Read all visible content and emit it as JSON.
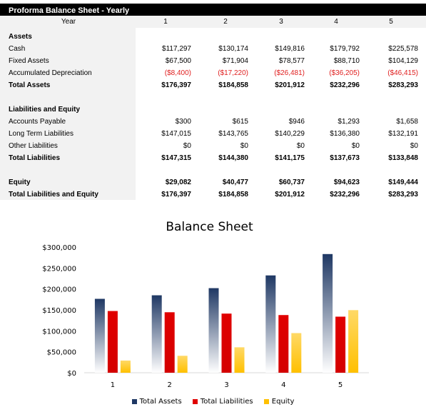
{
  "sheet": {
    "title": "Proforma Balance Sheet - Yearly",
    "year_label": "Year",
    "years": [
      "1",
      "2",
      "3",
      "4",
      "5"
    ],
    "rows": [
      {
        "label": "Assets",
        "bold": true,
        "values": []
      },
      {
        "label": "Cash",
        "values": [
          "$117,297",
          "$130,174",
          "$149,816",
          "$179,792",
          "$225,578"
        ]
      },
      {
        "label": "Fixed Assets",
        "values": [
          "$67,500",
          "$71,904",
          "$78,577",
          "$88,710",
          "$104,129"
        ]
      },
      {
        "label": "Accumulated Depreciation",
        "negative": true,
        "values": [
          "($8,400)",
          "($17,220)",
          "($26,481)",
          "($36,205)",
          "($46,415)"
        ]
      },
      {
        "label": "Total Assets",
        "bold": true,
        "values": [
          "$176,397",
          "$184,858",
          "$201,912",
          "$232,296",
          "$283,293"
        ]
      },
      {
        "label": "",
        "values": []
      },
      {
        "label": "Liabilities and Equity",
        "bold": true,
        "values": []
      },
      {
        "label": "Accounts Payable",
        "values": [
          "$300",
          "$615",
          "$946",
          "$1,293",
          "$1,658"
        ]
      },
      {
        "label": "Long Term Liabilities",
        "values": [
          "$147,015",
          "$143,765",
          "$140,229",
          "$136,380",
          "$132,191"
        ]
      },
      {
        "label": "Other Liabilities",
        "values": [
          "$0",
          "$0",
          "$0",
          "$0",
          "$0"
        ]
      },
      {
        "label": "Total Liabilities",
        "bold": true,
        "values": [
          "$147,315",
          "$144,380",
          "$141,175",
          "$137,673",
          "$133,848"
        ]
      },
      {
        "label": "",
        "values": []
      },
      {
        "label": "Equity",
        "bold": true,
        "values": [
          "$29,082",
          "$40,477",
          "$60,737",
          "$94,623",
          "$149,444"
        ]
      },
      {
        "label": "Total Liabilities and Equity",
        "bold": true,
        "values": [
          "$176,397",
          "$184,858",
          "$201,912",
          "$232,296",
          "$283,293"
        ]
      }
    ]
  },
  "chart_data": {
    "type": "bar",
    "title": "Balance Sheet",
    "categories": [
      "1",
      "2",
      "3",
      "4",
      "5"
    ],
    "series": [
      {
        "name": "Total Assets",
        "values": [
          176397,
          184858,
          201912,
          232296,
          283293
        ],
        "color": "#1f3864"
      },
      {
        "name": "Total Liabilities",
        "values": [
          147315,
          144380,
          141175,
          137673,
          133848
        ],
        "color": "#e00000"
      },
      {
        "name": "Equity",
        "values": [
          29082,
          40477,
          60737,
          94623,
          149444
        ],
        "color": "#ffc000"
      }
    ],
    "ylim": [
      0,
      300000
    ],
    "yticks": [
      "$0",
      "$50,000",
      "$100,000",
      "$150,000",
      "$200,000",
      "$250,000",
      "$300,000"
    ],
    "legend": "bottom",
    "grid": false
  }
}
